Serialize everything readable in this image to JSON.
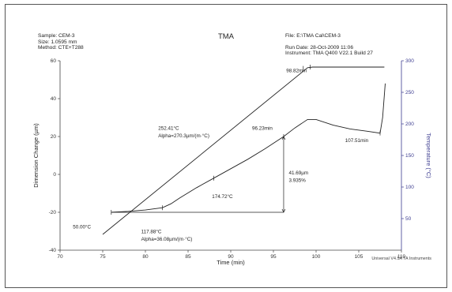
{
  "header": {
    "sample": "Sample: CEM-3",
    "size": "Size:  1.0595 mm",
    "method": "Method: CTE+T288",
    "file": "File: E:\\TMA Cal\\CEM-3",
    "run_date": "Run Date: 28-Oct-2009 11:06",
    "instrument": "Instrument: TMA Q400 V22.1 Build 27"
  },
  "footer": "Universal V4.5A TA Instruments",
  "chart_data": {
    "type": "line",
    "title": "TMA",
    "xlabel": "Time (min)",
    "ylabel": "Dimension Change (µm)",
    "y2label": "Temperature (°C)",
    "xlim": [
      70,
      110
    ],
    "ylim": [
      -40,
      60
    ],
    "y2lim": [
      0,
      300
    ],
    "x_ticks": [
      70,
      75,
      80,
      85,
      90,
      95,
      100,
      105,
      110
    ],
    "y_ticks": [
      -40,
      -20,
      0,
      20,
      40,
      60
    ],
    "y2_ticks": [
      50,
      100,
      150,
      200,
      250,
      300
    ],
    "colors": {
      "curve": "#222222",
      "temperature_axis": "#3b3b8f",
      "frame": "#555555"
    },
    "series": [
      {
        "axis": "left",
        "x": [
          76.0,
          78.0,
          80.0,
          82.0,
          83.0,
          84.0,
          86.0,
          88.0,
          90.0,
          92.0,
          94.0,
          96.2,
          97.5,
          99.0,
          100.0,
          102.0,
          104.0,
          106.0,
          107.5,
          107.8,
          108.0,
          108.1
        ],
        "y": [
          -20.0,
          -19.5,
          -18.8,
          -17.6,
          -15.5,
          -12.5,
          -7.0,
          -2.0,
          3.0,
          8.0,
          13.5,
          20.0,
          24.5,
          29.0,
          29.0,
          26.0,
          24.0,
          22.8,
          21.8,
          30.0,
          42.0,
          48.0
        ]
      },
      {
        "axis": "right",
        "x": [
          75.0,
          99.0,
          99.6,
          108.0
        ],
        "y": [
          25.0,
          289.0,
          290.0,
          290.0
        ]
      }
    ],
    "annotations": {
      "start_label": "50.00°C",
      "max_time": "98.82min",
      "transition_label": "252.41°C",
      "alpha_upper": "Alpha=270.3µm/(m·°C)",
      "onset_label": "96.23min",
      "end_time": "107.51min",
      "tg_label": "174.72°C",
      "delta_um": "41.69µm",
      "delta_pct": "3.935%",
      "lower_temp": "117.88°C",
      "alpha_lower": "Alpha=36.08µm/(m·°C)"
    }
  }
}
